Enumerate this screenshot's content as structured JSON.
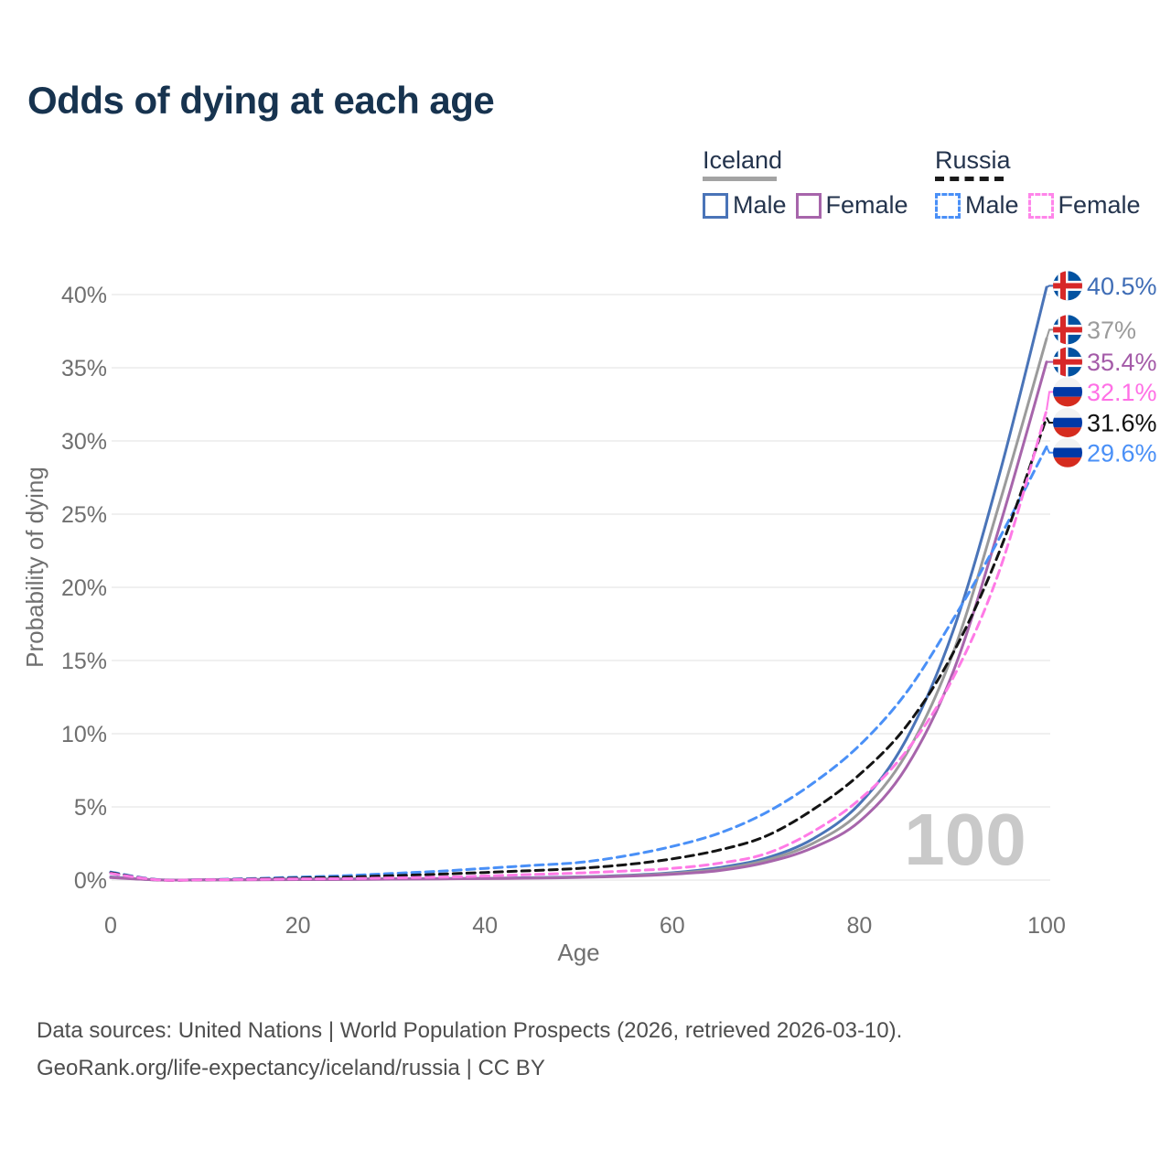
{
  "title": "Odds of dying at each age",
  "watermark_age_counter": "100",
  "legend": {
    "groups": [
      {
        "label": "Iceland",
        "line_style": "solid",
        "underline_color": "#a3a3a3",
        "entries": [
          {
            "label": "Male",
            "color": "#4a74b8"
          },
          {
            "label": "Female",
            "color": "#a765ab"
          }
        ]
      },
      {
        "label": "Russia",
        "line_style": "dashed",
        "underline_color": "#1a1a1a",
        "entries": [
          {
            "label": "Male",
            "color": "#4a90f7"
          },
          {
            "label": "Female",
            "color": "#ff85ea"
          }
        ]
      }
    ]
  },
  "chart_data": {
    "type": "line",
    "xlabel": "Age",
    "ylabel": "Probability of dying",
    "xlim": [
      0,
      100
    ],
    "ylim_pct": [
      0,
      42
    ],
    "grid": true,
    "legend_position": "top-right",
    "x_ticks": [
      0,
      20,
      40,
      60,
      80,
      100
    ],
    "y_ticks_pct": [
      0,
      5,
      10,
      15,
      20,
      25,
      30,
      35,
      40
    ],
    "y_tick_suffix": "%",
    "ages": [
      0,
      5,
      10,
      15,
      20,
      25,
      30,
      35,
      40,
      45,
      50,
      55,
      60,
      65,
      70,
      75,
      80,
      85,
      90,
      95,
      100
    ],
    "series": [
      {
        "name": "Iceland Male",
        "country": "iceland",
        "sex": "Male",
        "style": "solid",
        "color": "#4a74b8",
        "label_color": "#3f6db6",
        "end_label": "40.5%",
        "end_value_pct": 40.5,
        "label_line_pct": 40.6,
        "values_pct": [
          0.22,
          0.01,
          0.01,
          0.04,
          0.07,
          0.08,
          0.09,
          0.1,
          0.12,
          0.16,
          0.22,
          0.32,
          0.5,
          0.85,
          1.5,
          2.8,
          5.2,
          9.6,
          17.0,
          27.8,
          40.5
        ]
      },
      {
        "name": "Iceland Both sexes",
        "country": "iceland",
        "sex": "Both",
        "style": "solid",
        "color": "#9b9b9b",
        "label_color": "#9b9b9b",
        "end_label": "37%",
        "end_value_pct": 37.0,
        "label_line_pct": 37.6,
        "values_pct": [
          0.19,
          0.01,
          0.01,
          0.03,
          0.05,
          0.06,
          0.08,
          0.09,
          0.11,
          0.14,
          0.2,
          0.29,
          0.45,
          0.75,
          1.35,
          2.5,
          4.6,
          8.6,
          15.5,
          25.8,
          37.0
        ]
      },
      {
        "name": "Iceland Female",
        "country": "iceland",
        "sex": "Female",
        "style": "solid",
        "color": "#a765ab",
        "label_color": "#a45ba8",
        "end_label": "35.4%",
        "end_value_pct": 35.4,
        "label_line_pct": 35.4,
        "values_pct": [
          0.17,
          0.01,
          0.01,
          0.02,
          0.03,
          0.04,
          0.06,
          0.08,
          0.1,
          0.13,
          0.18,
          0.26,
          0.4,
          0.65,
          1.2,
          2.2,
          4.0,
          7.7,
          14.2,
          24.2,
          35.4
        ]
      },
      {
        "name": "Russia Male",
        "country": "russia",
        "sex": "Male",
        "style": "dashed",
        "color": "#4a90f7",
        "label_color": "#4a90f7",
        "end_label": "29.6%",
        "end_value_pct": 29.6,
        "label_line_pct": 29.2,
        "values_pct": [
          0.55,
          0.03,
          0.03,
          0.1,
          0.2,
          0.3,
          0.45,
          0.6,
          0.8,
          1.0,
          1.2,
          1.65,
          2.3,
          3.2,
          4.6,
          6.6,
          9.2,
          12.8,
          17.8,
          23.4,
          29.6
        ]
      },
      {
        "name": "Russia Both sexes",
        "country": "russia",
        "sex": "Both",
        "style": "dashed",
        "color": "#141414",
        "label_color": "#111111",
        "end_label": "31.6%",
        "end_value_pct": 31.6,
        "label_line_pct": 31.25,
        "values_pct": [
          0.5,
          0.02,
          0.02,
          0.07,
          0.14,
          0.2,
          0.3,
          0.4,
          0.52,
          0.65,
          0.8,
          1.05,
          1.45,
          2.05,
          3.0,
          4.8,
          7.2,
          10.5,
          15.5,
          22.5,
          31.6
        ]
      },
      {
        "name": "Russia Female",
        "country": "russia",
        "sex": "Female",
        "style": "dashed",
        "color": "#ff7ae6",
        "label_color": "#ff70e6",
        "end_label": "32.1%",
        "end_value_pct": 32.1,
        "label_line_pct": 33.35,
        "values_pct": [
          0.45,
          0.02,
          0.02,
          0.05,
          0.08,
          0.1,
          0.15,
          0.2,
          0.28,
          0.38,
          0.48,
          0.62,
          0.8,
          1.15,
          1.8,
          3.3,
          5.5,
          8.8,
          13.8,
          21.2,
          32.1
        ]
      }
    ]
  },
  "footer": {
    "line1": "Data sources: United Nations | World Population Prospects (2026, retrieved 2026-03-10).",
    "line2": "GeoRank.org/life-expectancy/iceland/russia | CC BY"
  }
}
